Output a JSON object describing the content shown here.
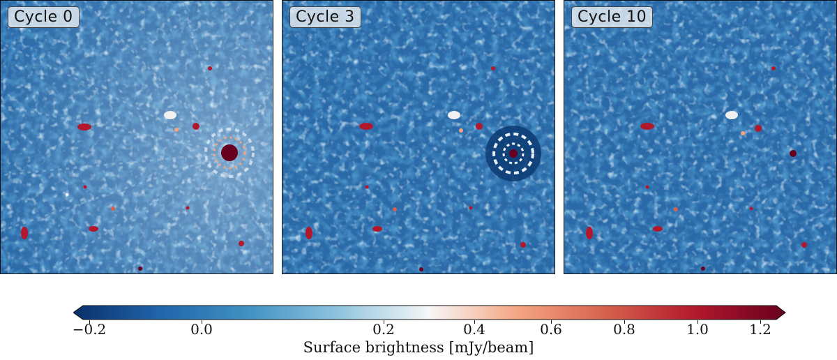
{
  "panels": [
    {
      "label": "Cycle 0"
    },
    {
      "label": "Cycle 3"
    },
    {
      "label": "Cycle 10"
    }
  ],
  "colorbar": {
    "label": "Surface brightness [mJy/beam]",
    "ticks": [
      "−0.2",
      "0.0",
      "0.2",
      "0.4",
      "0.6",
      "0.8",
      "1.0",
      "1.2"
    ],
    "tick_values": [
      -0.2,
      0.0,
      0.2,
      0.4,
      0.6,
      0.8,
      1.0,
      1.2
    ],
    "colormap": "RdBu_r",
    "colors": [
      "#08306b",
      "#2166ac",
      "#4393c3",
      "#92c5de",
      "#f7f7f7",
      "#f4a582",
      "#d6604d",
      "#b2182b",
      "#67001f"
    ]
  }
}
